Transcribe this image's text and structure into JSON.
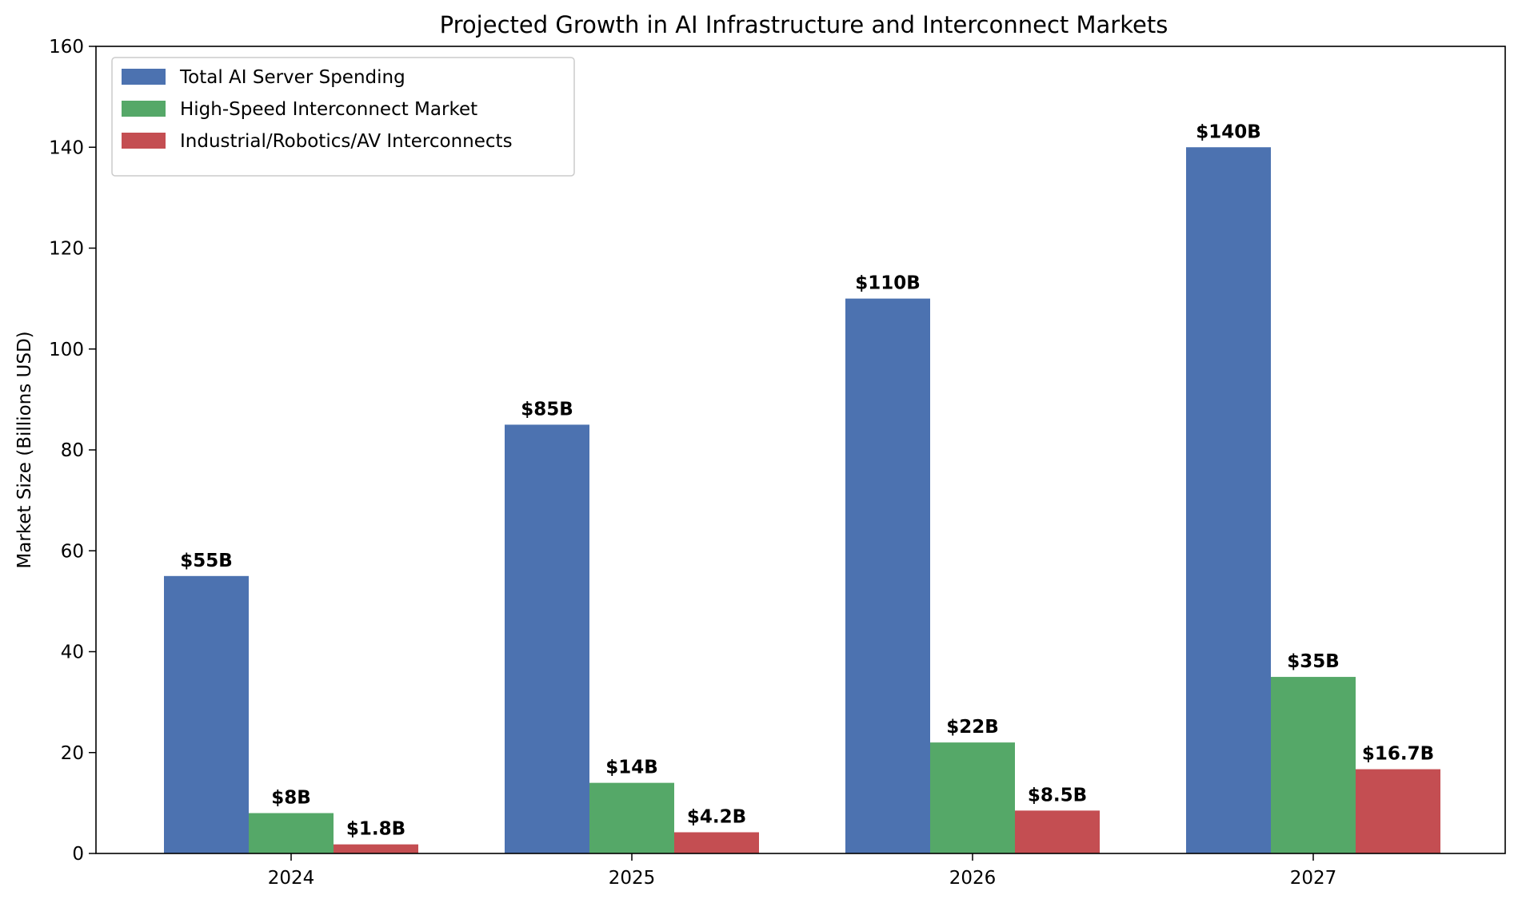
{
  "chart_data": {
    "type": "bar",
    "title": "Projected Growth in AI Infrastructure and Interconnect Markets",
    "xlabel": "",
    "ylabel": "Market Size (Billions USD)",
    "categories": [
      "2024",
      "2025",
      "2026",
      "2027"
    ],
    "ylim": [
      0,
      160
    ],
    "yticks": [
      0,
      20,
      40,
      60,
      80,
      100,
      120,
      140,
      160
    ],
    "grid": false,
    "legend_position": "top-left",
    "series": [
      {
        "name": "Total AI Server Spending",
        "color": "#4c72b0",
        "values": [
          55,
          85,
          110,
          140
        ],
        "labels": [
          "$55B",
          "$85B",
          "$110B",
          "$140B"
        ]
      },
      {
        "name": "High-Speed Interconnect Market",
        "color": "#55a868",
        "values": [
          8,
          14,
          22,
          35
        ],
        "labels": [
          "$8B",
          "$14B",
          "$22B",
          "$35B"
        ]
      },
      {
        "name": "Industrial/Robotics/AV Interconnects",
        "color": "#c44e52",
        "values": [
          1.8,
          4.2,
          8.5,
          16.7
        ],
        "labels": [
          "$1.8B",
          "$4.2B",
          "$8.5B",
          "$16.7B"
        ]
      }
    ]
  }
}
